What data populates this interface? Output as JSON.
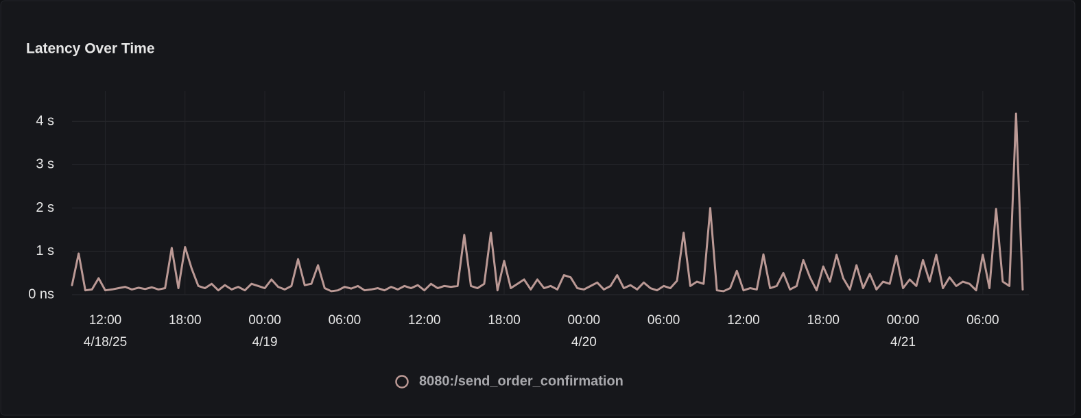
{
  "chart_data": {
    "type": "line",
    "title": "Latency Over Time",
    "x": [
      "2025-04-18T09:30",
      "2025-04-18T10:00",
      "2025-04-18T10:30",
      "2025-04-18T11:00",
      "2025-04-18T11:30",
      "2025-04-18T12:00",
      "2025-04-18T12:30",
      "2025-04-18T13:00",
      "2025-04-18T13:30",
      "2025-04-18T14:00",
      "2025-04-18T14:30",
      "2025-04-18T15:00",
      "2025-04-18T15:30",
      "2025-04-18T16:00",
      "2025-04-18T16:30",
      "2025-04-18T17:00",
      "2025-04-18T17:30",
      "2025-04-18T18:00",
      "2025-04-18T18:30",
      "2025-04-18T19:00",
      "2025-04-18T19:30",
      "2025-04-18T20:00",
      "2025-04-18T20:30",
      "2025-04-18T21:00",
      "2025-04-18T21:30",
      "2025-04-18T22:00",
      "2025-04-18T22:30",
      "2025-04-18T23:00",
      "2025-04-18T23:30",
      "2025-04-19T00:00",
      "2025-04-19T00:30",
      "2025-04-19T01:00",
      "2025-04-19T01:30",
      "2025-04-19T02:00",
      "2025-04-19T02:30",
      "2025-04-19T03:00",
      "2025-04-19T03:30",
      "2025-04-19T04:00",
      "2025-04-19T04:30",
      "2025-04-19T05:00",
      "2025-04-19T05:30",
      "2025-04-19T06:00",
      "2025-04-19T06:30",
      "2025-04-19T07:00",
      "2025-04-19T07:30",
      "2025-04-19T08:00",
      "2025-04-19T08:30",
      "2025-04-19T09:00",
      "2025-04-19T09:30",
      "2025-04-19T10:00",
      "2025-04-19T10:30",
      "2025-04-19T11:00",
      "2025-04-19T11:30",
      "2025-04-19T12:00",
      "2025-04-19T12:30",
      "2025-04-19T13:00",
      "2025-04-19T13:30",
      "2025-04-19T14:00",
      "2025-04-19T14:30",
      "2025-04-19T15:00",
      "2025-04-19T15:30",
      "2025-04-19T16:00",
      "2025-04-19T16:30",
      "2025-04-19T17:00",
      "2025-04-19T17:30",
      "2025-04-19T18:00",
      "2025-04-19T18:30",
      "2025-04-19T19:00",
      "2025-04-19T19:30",
      "2025-04-19T20:00",
      "2025-04-19T20:30",
      "2025-04-19T21:00",
      "2025-04-19T21:30",
      "2025-04-19T22:00",
      "2025-04-19T22:30",
      "2025-04-19T23:00",
      "2025-04-19T23:30",
      "2025-04-20T00:00",
      "2025-04-20T00:30",
      "2025-04-20T01:00",
      "2025-04-20T01:30",
      "2025-04-20T02:00",
      "2025-04-20T02:30",
      "2025-04-20T03:00",
      "2025-04-20T03:30",
      "2025-04-20T04:00",
      "2025-04-20T04:30",
      "2025-04-20T05:00",
      "2025-04-20T05:30",
      "2025-04-20T06:00",
      "2025-04-20T06:30",
      "2025-04-20T07:00",
      "2025-04-20T07:30",
      "2025-04-20T08:00",
      "2025-04-20T08:30",
      "2025-04-20T09:00",
      "2025-04-20T09:30",
      "2025-04-20T10:00",
      "2025-04-20T10:30",
      "2025-04-20T11:00",
      "2025-04-20T11:30",
      "2025-04-20T12:00",
      "2025-04-20T12:30",
      "2025-04-20T13:00",
      "2025-04-20T13:30",
      "2025-04-20T14:00",
      "2025-04-20T14:30",
      "2025-04-20T15:00",
      "2025-04-20T15:30",
      "2025-04-20T16:00",
      "2025-04-20T16:30",
      "2025-04-20T17:00",
      "2025-04-20T17:30",
      "2025-04-20T18:00",
      "2025-04-20T18:30",
      "2025-04-20T19:00",
      "2025-04-20T19:30",
      "2025-04-20T20:00",
      "2025-04-20T20:30",
      "2025-04-20T21:00",
      "2025-04-20T21:30",
      "2025-04-20T22:00",
      "2025-04-20T22:30",
      "2025-04-20T23:00",
      "2025-04-20T23:30",
      "2025-04-21T00:00",
      "2025-04-21T00:30",
      "2025-04-21T01:00",
      "2025-04-21T01:30",
      "2025-04-21T02:00",
      "2025-04-21T02:30",
      "2025-04-21T03:00",
      "2025-04-21T03:30",
      "2025-04-21T04:00",
      "2025-04-21T04:30",
      "2025-04-21T05:00",
      "2025-04-21T05:30",
      "2025-04-21T06:00",
      "2025-04-21T06:30",
      "2025-04-21T07:00",
      "2025-04-21T07:30",
      "2025-04-21T08:00",
      "2025-04-21T08:30",
      "2025-04-21T09:00"
    ],
    "series": [
      {
        "name": "8080:/send_order_confirmation",
        "color": "#bb9995",
        "values": [
          0.22,
          0.95,
          0.1,
          0.12,
          0.38,
          0.1,
          0.12,
          0.15,
          0.18,
          0.12,
          0.16,
          0.13,
          0.17,
          0.12,
          0.15,
          1.08,
          0.15,
          1.1,
          0.6,
          0.2,
          0.15,
          0.25,
          0.1,
          0.22,
          0.12,
          0.18,
          0.1,
          0.25,
          0.2,
          0.15,
          0.35,
          0.18,
          0.12,
          0.2,
          0.82,
          0.22,
          0.25,
          0.68,
          0.15,
          0.08,
          0.1,
          0.18,
          0.14,
          0.2,
          0.1,
          0.12,
          0.15,
          0.1,
          0.18,
          0.12,
          0.2,
          0.15,
          0.22,
          0.1,
          0.25,
          0.15,
          0.2,
          0.18,
          0.2,
          1.38,
          0.2,
          0.15,
          0.25,
          1.43,
          0.1,
          0.78,
          0.15,
          0.25,
          0.35,
          0.12,
          0.35,
          0.15,
          0.2,
          0.12,
          0.45,
          0.4,
          0.15,
          0.12,
          0.2,
          0.28,
          0.12,
          0.2,
          0.45,
          0.15,
          0.22,
          0.12,
          0.28,
          0.15,
          0.1,
          0.2,
          0.15,
          0.32,
          1.43,
          0.2,
          0.3,
          0.25,
          2.0,
          0.1,
          0.08,
          0.15,
          0.55,
          0.1,
          0.15,
          0.12,
          0.93,
          0.15,
          0.2,
          0.5,
          0.12,
          0.2,
          0.8,
          0.4,
          0.1,
          0.65,
          0.3,
          0.92,
          0.38,
          0.12,
          0.68,
          0.15,
          0.48,
          0.12,
          0.3,
          0.25,
          0.9,
          0.15,
          0.35,
          0.2,
          0.8,
          0.3,
          0.92,
          0.15,
          0.4,
          0.2,
          0.3,
          0.25,
          0.1,
          0.92,
          0.15,
          1.98,
          0.3,
          0.2,
          4.18,
          0.12
        ]
      }
    ],
    "xlim": [
      "2025-04-18T09:30",
      "2025-04-21T09:00"
    ],
    "xticks": [
      {
        "value": "2025-04-18T12:00",
        "label": "12:00"
      },
      {
        "value": "2025-04-18T18:00",
        "label": "18:00"
      },
      {
        "value": "2025-04-19T00:00",
        "label": "00:00"
      },
      {
        "value": "2025-04-19T06:00",
        "label": "06:00"
      },
      {
        "value": "2025-04-19T12:00",
        "label": "12:00"
      },
      {
        "value": "2025-04-19T18:00",
        "label": "18:00"
      },
      {
        "value": "2025-04-20T00:00",
        "label": "00:00"
      },
      {
        "value": "2025-04-20T06:00",
        "label": "06:00"
      },
      {
        "value": "2025-04-20T12:00",
        "label": "12:00"
      },
      {
        "value": "2025-04-20T18:00",
        "label": "18:00"
      },
      {
        "value": "2025-04-21T00:00",
        "label": "00:00"
      },
      {
        "value": "2025-04-21T06:00",
        "label": "06:00"
      }
    ],
    "date_labels": [
      {
        "value": "2025-04-18T12:00",
        "label": "4/18/25"
      },
      {
        "value": "2025-04-19T00:00",
        "label": "4/19"
      },
      {
        "value": "2025-04-20T00:00",
        "label": "4/20"
      },
      {
        "value": "2025-04-21T00:00",
        "label": "4/21"
      }
    ],
    "ylim": [
      0,
      4.7
    ],
    "yticks": [
      {
        "value": 0,
        "label": "0 ns"
      },
      {
        "value": 1,
        "label": "1 s"
      },
      {
        "value": 2,
        "label": "2 s"
      },
      {
        "value": 3,
        "label": "3 s"
      },
      {
        "value": 4,
        "label": "4 s"
      }
    ],
    "grid": true
  }
}
